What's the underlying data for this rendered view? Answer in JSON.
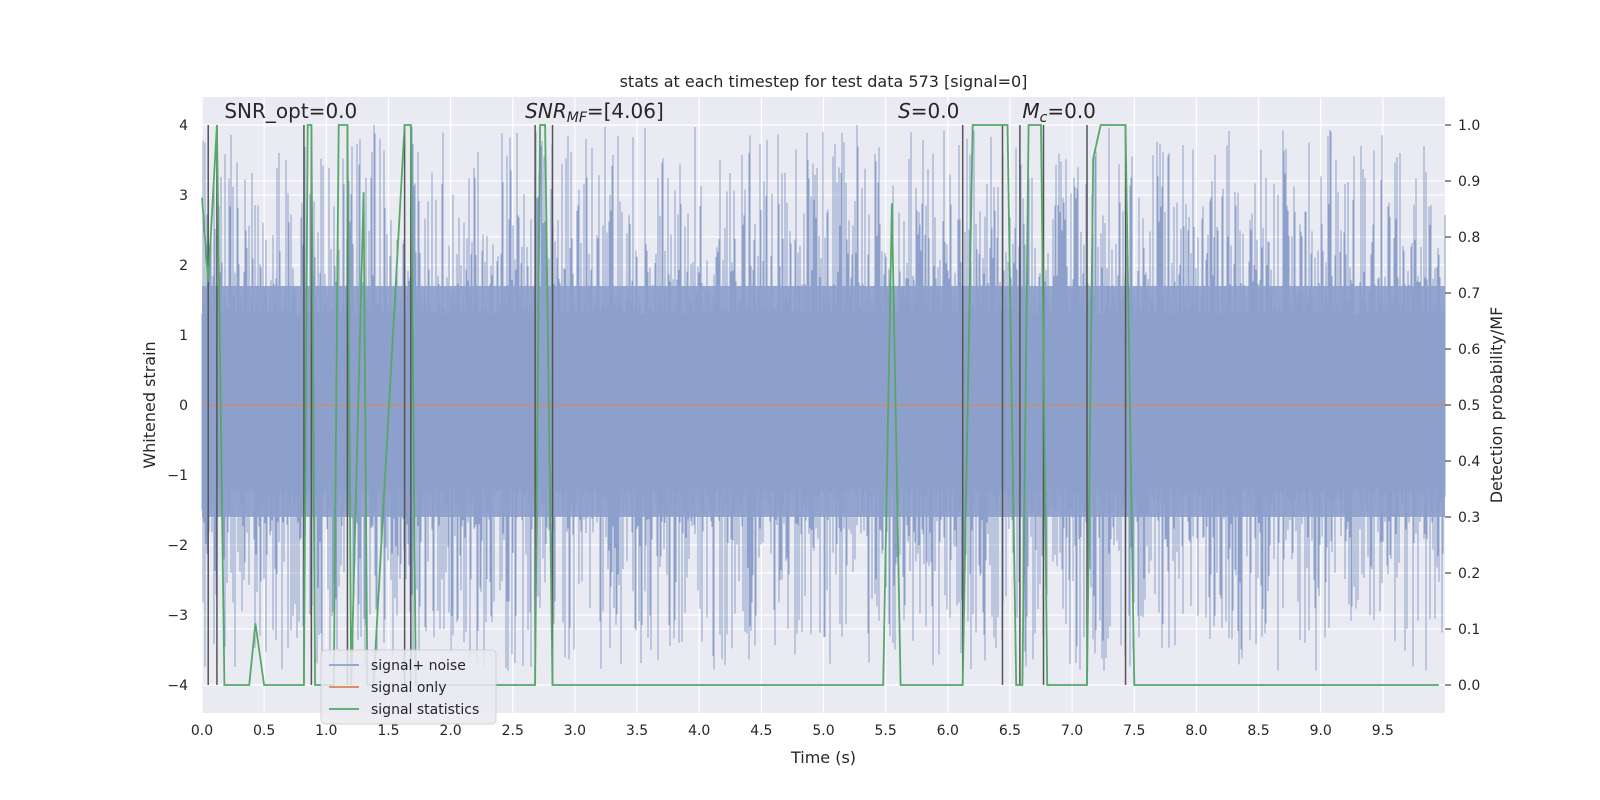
{
  "chart_data": {
    "type": "line",
    "title": "stats at each timestep for test data 573 [signal=0]",
    "xlabel": "Time (s)",
    "ylabel": "Whitened strain",
    "y2label": "Detection probability/MF",
    "xlim": [
      0.0,
      10.0
    ],
    "ylim": [
      -4.4,
      4.4
    ],
    "y2lim": [
      -0.05,
      1.05
    ],
    "xticks": [
      "0.0",
      "0.5",
      "1.0",
      "1.5",
      "2.0",
      "2.5",
      "3.0",
      "3.5",
      "4.0",
      "4.5",
      "5.0",
      "5.5",
      "6.0",
      "6.5",
      "7.0",
      "7.5",
      "8.0",
      "8.5",
      "9.0",
      "9.5"
    ],
    "yticks": [
      "−4",
      "−3",
      "−2",
      "−1",
      "0",
      "1",
      "2",
      "3",
      "4"
    ],
    "y2ticks": [
      "0.0",
      "0.1",
      "0.2",
      "0.3",
      "0.4",
      "0.5",
      "0.6",
      "0.7",
      "0.8",
      "0.9",
      "1.0"
    ],
    "grid": true,
    "legend_placement": "lower-left",
    "colors": {
      "noise": "#8da0cb",
      "signal": "#dd8452",
      "stats": "#55a868",
      "vline": "#555555",
      "background": "#eaeaf2",
      "grid": "#ffffff"
    },
    "series": [
      {
        "name": "signal+ noise",
        "kind": "noise",
        "typical_abs": 1.5,
        "peak_range": [
          -3.8,
          4.0
        ]
      },
      {
        "name": "signal only",
        "kind": "flat",
        "value": 0.0
      },
      {
        "name": "signal statistics",
        "kind": "stats",
        "axis": "right",
        "x": [
          0.0,
          0.05,
          0.12,
          0.18,
          0.3,
          0.38,
          0.43,
          0.5,
          0.82,
          0.85,
          0.88,
          0.91,
          1.06,
          1.1,
          1.17,
          1.2,
          1.3,
          1.33,
          1.38,
          1.63,
          1.68,
          1.72,
          2.68,
          2.72,
          2.76,
          2.82,
          2.86,
          5.48,
          5.55,
          5.62,
          6.12,
          6.2,
          6.25,
          6.48,
          6.55,
          6.6,
          6.65,
          6.75,
          6.8,
          6.88,
          7.08,
          7.12,
          7.17,
          7.23,
          7.43,
          7.5,
          9.95
        ],
        "y": [
          0.87,
          0.72,
          1.0,
          0.0,
          0.0,
          0.0,
          0.11,
          0.0,
          0.0,
          1.0,
          1.0,
          0.0,
          0.0,
          1.0,
          1.0,
          0.0,
          0.88,
          0.0,
          0.0,
          1.0,
          1.0,
          0.0,
          0.0,
          1.0,
          1.0,
          0.0,
          0.0,
          0.0,
          0.86,
          0.0,
          0.0,
          1.0,
          1.0,
          1.0,
          0.0,
          0.0,
          1.0,
          1.0,
          0.0,
          0.0,
          0.0,
          0.0,
          0.94,
          1.0,
          1.0,
          0.0,
          0.0
        ]
      }
    ],
    "vlines": [
      0.05,
      0.12,
      0.82,
      0.88,
      1.17,
      1.63,
      1.68,
      2.68,
      2.82,
      6.12,
      6.44,
      6.58,
      6.77,
      7.12,
      7.43
    ],
    "annotations": [
      {
        "text": "SNR_opt=0.0",
        "x": 0.18,
        "y": 4.1,
        "italic": false
      },
      {
        "text": "SNR_MF=[4.06]",
        "x": 2.6,
        "y": 4.1,
        "italic": "prefix",
        "parts": [
          {
            "t": "SNR",
            "i": true
          },
          {
            "t": "MF",
            "i": true,
            "sub": true
          },
          {
            "t": "=[4.06]",
            "i": false
          }
        ]
      },
      {
        "text": "S=0.0",
        "x": 5.6,
        "y": 4.1,
        "italic": "prefix",
        "parts": [
          {
            "t": "S",
            "i": true
          },
          {
            "t": "=0.0",
            "i": false
          }
        ]
      },
      {
        "text": "Mc=0.0",
        "x": 6.6,
        "y": 4.1,
        "italic": "prefix",
        "parts": [
          {
            "t": "M",
            "i": true
          },
          {
            "t": "c",
            "i": true,
            "sub": true
          },
          {
            "t": "=0.0",
            "i": false
          }
        ]
      }
    ]
  }
}
